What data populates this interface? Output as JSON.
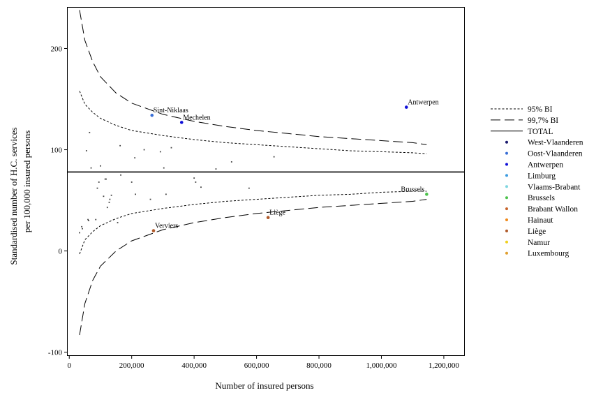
{
  "chart_data": {
    "type": "scatter",
    "xlabel": "Number of insured persons",
    "ylabel": [
      "Standardised number of H.C. services",
      "per 100,000 insured persons"
    ],
    "xlim": [
      -5000,
      1265000
    ],
    "ylim": [
      -103,
      241
    ],
    "xticks": [
      0,
      200000,
      400000,
      600000,
      800000,
      1000000,
      1200000
    ],
    "xtick_labels": [
      "0",
      "200,000",
      "400,000",
      "600,000",
      "800,000",
      "1,000,000",
      "1,200,000"
    ],
    "yticks": [
      -100,
      0,
      100,
      200
    ],
    "ytick_labels": [
      "-100",
      "0",
      "100",
      "200"
    ],
    "total_line": 78,
    "legend_position": "right",
    "legend": [
      {
        "label": "95% BI",
        "kind": "line",
        "dash": "short"
      },
      {
        "label": "99,7% BI",
        "kind": "line",
        "dash": "long"
      },
      {
        "label": "TOTAL",
        "kind": "line",
        "dash": "solid"
      },
      {
        "label": "West-Vlaanderen",
        "kind": "dot",
        "color": "#1a1a6e"
      },
      {
        "label": "Oost-Vlaanderen",
        "kind": "dot",
        "color": "#3a6fd6"
      },
      {
        "label": "Antwerpen",
        "kind": "dot",
        "color": "#1010d8"
      },
      {
        "label": "Limburg",
        "kind": "dot",
        "color": "#3c9be0"
      },
      {
        "label": "Vlaams-Brabant",
        "kind": "dot",
        "color": "#7fd6e0"
      },
      {
        "label": "Brussels",
        "kind": "dot",
        "color": "#4cc24c"
      },
      {
        "label": "Brabant Wallon",
        "kind": "dot",
        "color": "#c8662e"
      },
      {
        "label": "Hainaut",
        "kind": "dot",
        "color": "#f08a1c"
      },
      {
        "label": "Liège",
        "kind": "dot",
        "color": "#b05a2a"
      },
      {
        "label": "Namur",
        "kind": "dot",
        "color": "#f0d020"
      },
      {
        "label": "Luxembourg",
        "kind": "dot",
        "color": "#e0a030"
      }
    ],
    "labeled_points": [
      {
        "name": "Antwerpen",
        "x": 1080000,
        "y": 142,
        "color": "#1010d8",
        "label_pos": "right"
      },
      {
        "name": "Sint-Niklaas",
        "x": 265000,
        "y": 134,
        "color": "#3a6fd6",
        "label_pos": "right"
      },
      {
        "name": "Mechelen",
        "x": 360000,
        "y": 127,
        "color": "#1010d8",
        "label_pos": "right"
      },
      {
        "name": "Brussels",
        "x": 1145000,
        "y": 56,
        "color": "#4cc24c",
        "label_pos": "left"
      },
      {
        "name": "Liège",
        "x": 637000,
        "y": 33,
        "color": "#b05a2a",
        "label_pos": "right"
      },
      {
        "name": "Verviers",
        "x": 270000,
        "y": 20,
        "color": "#b05a2a",
        "label_pos": "right"
      }
    ],
    "points": [
      [
        33000,
        18
      ],
      [
        40000,
        24
      ],
      [
        42000,
        22
      ],
      [
        55000,
        99
      ],
      [
        60000,
        31
      ],
      [
        62000,
        30
      ],
      [
        65000,
        117
      ],
      [
        70000,
        82
      ],
      [
        85000,
        31
      ],
      [
        90000,
        62
      ],
      [
        95000,
        68
      ],
      [
        100000,
        84
      ],
      [
        110000,
        54
      ],
      [
        115000,
        71
      ],
      [
        118000,
        71
      ],
      [
        122000,
        43
      ],
      [
        128000,
        48
      ],
      [
        130000,
        51
      ],
      [
        135000,
        55
      ],
      [
        155000,
        28
      ],
      [
        163000,
        104
      ],
      [
        165000,
        75
      ],
      [
        200000,
        68
      ],
      [
        210000,
        92
      ],
      [
        212000,
        56
      ],
      [
        240000,
        100
      ],
      [
        260000,
        51
      ],
      [
        292000,
        98
      ],
      [
        303000,
        82
      ],
      [
        310000,
        56
      ],
      [
        327000,
        102
      ],
      [
        400000,
        72
      ],
      [
        405000,
        68
      ],
      [
        422000,
        63
      ],
      [
        470000,
        81
      ],
      [
        520000,
        88
      ],
      [
        576000,
        62
      ],
      [
        656000,
        93
      ]
    ],
    "ci_95": {
      "upper": [
        [
          33000,
          158
        ],
        [
          50000,
          145
        ],
        [
          75000,
          137
        ],
        [
          100000,
          131
        ],
        [
          150000,
          124
        ],
        [
          200000,
          119
        ],
        [
          300000,
          114
        ],
        [
          400000,
          110
        ],
        [
          500000,
          107
        ],
        [
          600000,
          105
        ],
        [
          700000,
          103
        ],
        [
          800000,
          101
        ],
        [
          900000,
          99
        ],
        [
          1000000,
          98
        ],
        [
          1100000,
          97
        ],
        [
          1145000,
          96
        ]
      ],
      "lower": [
        [
          33000,
          -3
        ],
        [
          50000,
          11
        ],
        [
          75000,
          19
        ],
        [
          100000,
          25
        ],
        [
          150000,
          32
        ],
        [
          200000,
          37
        ],
        [
          300000,
          42
        ],
        [
          400000,
          46
        ],
        [
          500000,
          49
        ],
        [
          600000,
          51
        ],
        [
          700000,
          53
        ],
        [
          800000,
          55
        ],
        [
          900000,
          56
        ],
        [
          1000000,
          58
        ],
        [
          1100000,
          59
        ],
        [
          1145000,
          59
        ]
      ]
    },
    "ci_997": {
      "upper": [
        [
          33000,
          238
        ],
        [
          50000,
          208
        ],
        [
          75000,
          187
        ],
        [
          100000,
          172
        ],
        [
          150000,
          156
        ],
        [
          200000,
          146
        ],
        [
          300000,
          135
        ],
        [
          400000,
          128
        ],
        [
          500000,
          123
        ],
        [
          600000,
          119
        ],
        [
          700000,
          116
        ],
        [
          800000,
          113
        ],
        [
          900000,
          111
        ],
        [
          1000000,
          109
        ],
        [
          1100000,
          107
        ],
        [
          1145000,
          105
        ]
      ],
      "lower": [
        [
          33000,
          -83
        ],
        [
          50000,
          -52
        ],
        [
          75000,
          -29
        ],
        [
          100000,
          -15
        ],
        [
          150000,
          0
        ],
        [
          200000,
          10
        ],
        [
          300000,
          21
        ],
        [
          400000,
          28
        ],
        [
          500000,
          33
        ],
        [
          600000,
          37
        ],
        [
          700000,
          40
        ],
        [
          800000,
          43
        ],
        [
          900000,
          45
        ],
        [
          1000000,
          47
        ],
        [
          1100000,
          49
        ],
        [
          1145000,
          51
        ]
      ]
    }
  }
}
